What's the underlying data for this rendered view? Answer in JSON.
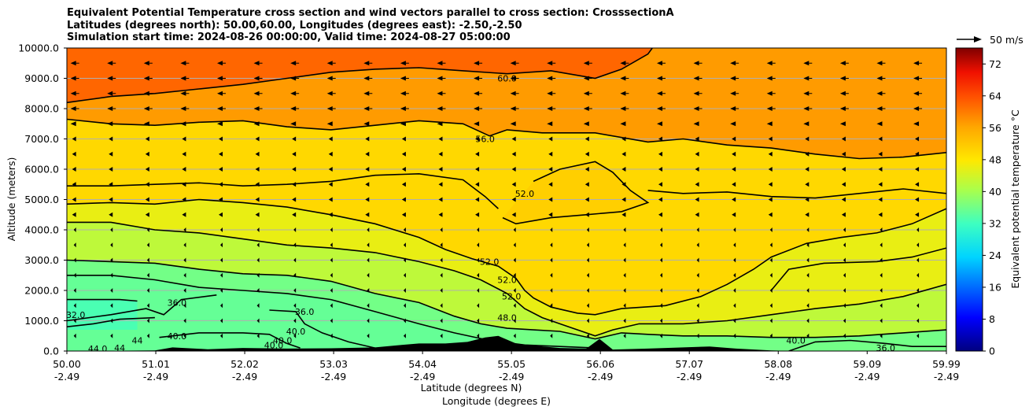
{
  "title_lines": [
    "Equivalent Potential Temperature cross section and wind vectors parallel to cross section: CrosssectionA",
    "Latitudes (degrees north): 50.00,60.00, Longitudes (degrees east): -2.50,-2.50",
    "Simulation start time: 2024-08-26 00:00:00, Valid time: 2024-08-27 05:00:00"
  ],
  "chart_data": {
    "type": "heatmap",
    "subtype": "filled contour cross section with wind vectors",
    "ylabel": "Altitude (meters)",
    "xlabel_lines": [
      "Latitude (degrees N)",
      "Longitude (degrees E)"
    ],
    "ylim": [
      0,
      10000
    ],
    "xlim": [
      50.0,
      59.99
    ],
    "y_ticks": [
      "0.0",
      "1000.0",
      "2000.0",
      "3000.0",
      "4000.0",
      "5000.0",
      "6000.0",
      "7000.0",
      "8000.0",
      "9000.0",
      "10000.0"
    ],
    "x_ticks": [
      {
        "lat": "50.00",
        "lon": "-2.49"
      },
      {
        "lat": "51.01",
        "lon": "-2.49"
      },
      {
        "lat": "52.02",
        "lon": "-2.49"
      },
      {
        "lat": "53.03",
        "lon": "-2.49"
      },
      {
        "lat": "54.04",
        "lon": "-2.49"
      },
      {
        "lat": "55.05",
        "lon": "-2.49"
      },
      {
        "lat": "56.06",
        "lon": "-2.49"
      },
      {
        "lat": "57.07",
        "lon": "-2.49"
      },
      {
        "lat": "58.08",
        "lon": "-2.49"
      },
      {
        "lat": "59.09",
        "lon": "-2.49"
      },
      {
        "lat": "59.99",
        "lon": "-2.49"
      }
    ],
    "colorbar": {
      "label": "Equivalent potential temperature °C",
      "range": [
        0,
        76
      ],
      "ticks": [
        "0",
        "8",
        "16",
        "24",
        "32",
        "40",
        "48",
        "56",
        "64",
        "72"
      ]
    },
    "quiver_key": "50 m/s",
    "contour_levels": [
      32,
      36,
      40,
      44,
      48,
      52,
      56,
      60
    ],
    "contour_labels": [
      {
        "text": "60.0",
        "lat": 55.0,
        "alt": 9000
      },
      {
        "text": "56.0",
        "lat": 54.75,
        "alt": 7000
      },
      {
        "text": "52.0",
        "lat": 55.2,
        "alt": 5200
      },
      {
        "text": "52.0",
        "lat": 54.8,
        "alt": 2950
      },
      {
        "text": "52.0",
        "lat": 55.0,
        "alt": 2350
      },
      {
        "text": "52.0",
        "lat": 55.05,
        "alt": 1800
      },
      {
        "text": "48.0",
        "lat": 55.0,
        "alt": 1100
      },
      {
        "text": "40.0",
        "lat": 51.25,
        "alt": 500
      },
      {
        "text": "40.0",
        "lat": 52.6,
        "alt": 650
      },
      {
        "text": "40.0",
        "lat": 52.45,
        "alt": 350
      },
      {
        "text": "40.0",
        "lat": 52.35,
        "alt": 200
      },
      {
        "text": "40.0",
        "lat": 58.28,
        "alt": 350
      },
      {
        "text": "36.0",
        "lat": 51.25,
        "alt": 1600
      },
      {
        "text": "36.0",
        "lat": 52.7,
        "alt": 1300
      },
      {
        "text": "36.0",
        "lat": 59.3,
        "alt": 100
      },
      {
        "text": "32.0",
        "lat": 50.1,
        "alt": 1200
      },
      {
        "text": "44.0",
        "lat": 50.35,
        "alt": 80
      },
      {
        "text": "44",
        "lat": 50.6,
        "alt": 100
      },
      {
        "text": "44",
        "lat": 50.8,
        "alt": 350
      }
    ],
    "contour_lines": [
      {
        "level": 60,
        "pts": [
          [
            50.0,
            8200
          ],
          [
            50.5,
            8400
          ],
          [
            51.0,
            8500
          ],
          [
            51.5,
            8650
          ],
          [
            52.0,
            8800
          ],
          [
            52.5,
            9000
          ],
          [
            53.0,
            9200
          ],
          [
            53.5,
            9300
          ],
          [
            54.0,
            9350
          ],
          [
            54.5,
            9250
          ],
          [
            55.0,
            9150
          ],
          [
            55.5,
            9250
          ],
          [
            56.0,
            9000
          ],
          [
            56.3,
            9300
          ],
          [
            56.6,
            9800
          ],
          [
            56.65,
            10000
          ]
        ]
      },
      {
        "level": 56,
        "pts": [
          [
            50.0,
            7650
          ],
          [
            50.5,
            7500
          ],
          [
            51.0,
            7450
          ],
          [
            51.5,
            7550
          ],
          [
            52.0,
            7600
          ],
          [
            52.5,
            7400
          ],
          [
            53.0,
            7300
          ],
          [
            53.5,
            7450
          ],
          [
            54.0,
            7600
          ],
          [
            54.5,
            7500
          ],
          [
            54.8,
            7100
          ],
          [
            55.0,
            7300
          ],
          [
            55.4,
            7200
          ],
          [
            56.0,
            7200
          ],
          [
            56.6,
            6900
          ],
          [
            57.0,
            7000
          ],
          [
            57.5,
            6800
          ],
          [
            58.0,
            6700
          ],
          [
            58.5,
            6500
          ],
          [
            59.0,
            6350
          ],
          [
            59.5,
            6400
          ],
          [
            59.99,
            6550
          ]
        ]
      },
      {
        "level": 52,
        "pts": [
          [
            50.0,
            5450
          ],
          [
            50.5,
            5450
          ],
          [
            51.0,
            5500
          ],
          [
            51.5,
            5550
          ],
          [
            52.0,
            5450
          ],
          [
            52.5,
            5500
          ],
          [
            53.0,
            5600
          ],
          [
            53.5,
            5800
          ],
          [
            54.0,
            5850
          ],
          [
            54.5,
            5650
          ],
          [
            54.75,
            5100
          ],
          [
            54.9,
            4700
          ]
        ]
      },
      {
        "level": 52,
        "pts": [
          [
            55.3,
            5600
          ],
          [
            55.6,
            6000
          ],
          [
            56.0,
            6250
          ],
          [
            56.2,
            5900
          ],
          [
            56.4,
            5300
          ],
          [
            56.6,
            4900
          ],
          [
            56.3,
            4600
          ],
          [
            55.9,
            4500
          ],
          [
            55.5,
            4400
          ],
          [
            55.1,
            4200
          ],
          [
            54.95,
            4400
          ]
        ]
      },
      {
        "level": 48,
        "pts": [
          [
            50.0,
            4850
          ],
          [
            50.5,
            4900
          ],
          [
            51.0,
            4850
          ],
          [
            51.5,
            5000
          ],
          [
            52.0,
            4900
          ],
          [
            52.5,
            4750
          ],
          [
            53.0,
            4500
          ],
          [
            53.5,
            4200
          ],
          [
            54.0,
            3750
          ],
          [
            54.3,
            3350
          ],
          [
            54.6,
            3050
          ],
          [
            54.9,
            2800
          ],
          [
            55.1,
            2400
          ],
          [
            55.2,
            2000
          ],
          [
            55.3,
            1750
          ],
          [
            55.5,
            1450
          ],
          [
            55.8,
            1250
          ],
          [
            56.0,
            1200
          ],
          [
            56.3,
            1400
          ],
          [
            56.8,
            1500
          ],
          [
            57.2,
            1800
          ],
          [
            57.5,
            2200
          ],
          [
            57.8,
            2700
          ],
          [
            58.0,
            3100
          ],
          [
            58.4,
            3550
          ],
          [
            58.8,
            3750
          ],
          [
            59.2,
            3900
          ],
          [
            59.6,
            4200
          ],
          [
            59.99,
            4700
          ]
        ]
      },
      {
        "level": 48,
        "pts": [
          [
            56.6,
            5300
          ],
          [
            57.0,
            5200
          ],
          [
            57.5,
            5250
          ],
          [
            58.0,
            5100
          ],
          [
            58.5,
            5050
          ],
          [
            59.0,
            5200
          ],
          [
            59.5,
            5350
          ],
          [
            59.99,
            5200
          ]
        ]
      },
      {
        "level": 44,
        "pts": [
          [
            50.0,
            4250
          ],
          [
            50.5,
            4250
          ],
          [
            51.0,
            4000
          ],
          [
            51.5,
            3900
          ],
          [
            52.0,
            3700
          ],
          [
            52.5,
            3500
          ],
          [
            53.0,
            3400
          ],
          [
            53.5,
            3250
          ],
          [
            54.0,
            2950
          ],
          [
            54.4,
            2650
          ],
          [
            54.7,
            2350
          ],
          [
            55.0,
            1900
          ],
          [
            55.2,
            1400
          ],
          [
            55.4,
            1100
          ],
          [
            55.7,
            800
          ],
          [
            56.0,
            500
          ],
          [
            56.2,
            700
          ],
          [
            56.5,
            900
          ],
          [
            57.0,
            900
          ],
          [
            57.5,
            1000
          ],
          [
            58.0,
            1200
          ],
          [
            58.5,
            1400
          ],
          [
            59.0,
            1550
          ],
          [
            59.5,
            1800
          ],
          [
            59.99,
            2200
          ]
        ]
      },
      {
        "level": 44,
        "pts": [
          [
            58.0,
            2000
          ],
          [
            58.2,
            2700
          ],
          [
            58.6,
            2900
          ],
          [
            59.2,
            2950
          ],
          [
            59.6,
            3100
          ],
          [
            59.99,
            3400
          ]
        ]
      },
      {
        "level": 40,
        "pts": [
          [
            50.0,
            3000
          ],
          [
            50.5,
            2950
          ],
          [
            51.0,
            2900
          ],
          [
            51.5,
            2700
          ],
          [
            52.0,
            2550
          ],
          [
            52.5,
            2500
          ],
          [
            53.0,
            2300
          ],
          [
            53.5,
            1900
          ],
          [
            54.0,
            1600
          ],
          [
            54.4,
            1150
          ],
          [
            54.7,
            900
          ],
          [
            55.0,
            750
          ],
          [
            55.3,
            700
          ],
          [
            55.6,
            650
          ],
          [
            56.0,
            400
          ],
          [
            56.3,
            600
          ],
          [
            56.6,
            550
          ],
          [
            57.0,
            500
          ],
          [
            57.5,
            500
          ],
          [
            58.0,
            450
          ],
          [
            58.5,
            450
          ],
          [
            59.0,
            500
          ],
          [
            59.5,
            600
          ],
          [
            59.99,
            700
          ]
        ]
      },
      {
        "level": 40,
        "pts": [
          [
            51.05,
            450
          ],
          [
            51.5,
            600
          ],
          [
            52.0,
            600
          ],
          [
            52.3,
            550
          ],
          [
            52.5,
            250
          ],
          [
            52.65,
            100
          ]
        ]
      },
      {
        "level": 36,
        "pts": [
          [
            50.0,
            2500
          ],
          [
            50.5,
            2500
          ],
          [
            51.0,
            2350
          ],
          [
            51.5,
            2100
          ],
          [
            52.0,
            2000
          ],
          [
            52.5,
            1900
          ],
          [
            53.0,
            1700
          ],
          [
            53.5,
            1300
          ],
          [
            54.0,
            900
          ],
          [
            54.4,
            600
          ],
          [
            54.8,
            350
          ],
          [
            55.2,
            200
          ],
          [
            55.6,
            150
          ],
          [
            56.0,
            100
          ]
        ]
      },
      {
        "level": 36,
        "pts": [
          [
            50.0,
            1000
          ],
          [
            50.5,
            1200
          ],
          [
            50.9,
            1400
          ],
          [
            51.1,
            1200
          ],
          [
            51.3,
            1700
          ],
          [
            51.7,
            1850
          ]
        ]
      },
      {
        "level": 36,
        "pts": [
          [
            52.3,
            1350
          ],
          [
            52.6,
            1300
          ],
          [
            52.7,
            900
          ],
          [
            52.9,
            600
          ],
          [
            53.2,
            300
          ],
          [
            53.5,
            100
          ]
        ]
      },
      {
        "level": 36,
        "pts": [
          [
            58.2,
            0
          ],
          [
            58.5,
            300
          ],
          [
            58.9,
            350
          ],
          [
            59.3,
            250
          ],
          [
            59.6,
            150
          ],
          [
            59.99,
            150
          ]
        ]
      },
      {
        "level": 32,
        "pts": [
          [
            50.0,
            1700
          ],
          [
            50.3,
            1700
          ],
          [
            50.6,
            1700
          ],
          [
            50.8,
            1650
          ]
        ]
      },
      {
        "level": 32,
        "pts": [
          [
            50.0,
            800
          ],
          [
            50.3,
            900
          ],
          [
            50.6,
            1050
          ],
          [
            51.0,
            1100
          ]
        ]
      }
    ],
    "terrain_profile": [
      [
        50.0,
        0
      ],
      [
        51.0,
        20
      ],
      [
        51.2,
        120
      ],
      [
        51.6,
        60
      ],
      [
        52.0,
        100
      ],
      [
        52.5,
        80
      ],
      [
        53.0,
        90
      ],
      [
        53.5,
        120
      ],
      [
        53.8,
        200
      ],
      [
        54.0,
        250
      ],
      [
        54.3,
        250
      ],
      [
        54.55,
        300
      ],
      [
        54.75,
        450
      ],
      [
        54.9,
        500
      ],
      [
        55.1,
        250
      ],
      [
        55.3,
        180
      ],
      [
        55.6,
        100
      ],
      [
        55.9,
        80
      ],
      [
        56.05,
        400
      ],
      [
        56.2,
        50
      ],
      [
        56.6,
        80
      ],
      [
        57.0,
        120
      ],
      [
        57.3,
        150
      ],
      [
        57.6,
        80
      ],
      [
        58.0,
        20
      ],
      [
        58.3,
        0
      ],
      [
        59.99,
        0
      ]
    ]
  }
}
